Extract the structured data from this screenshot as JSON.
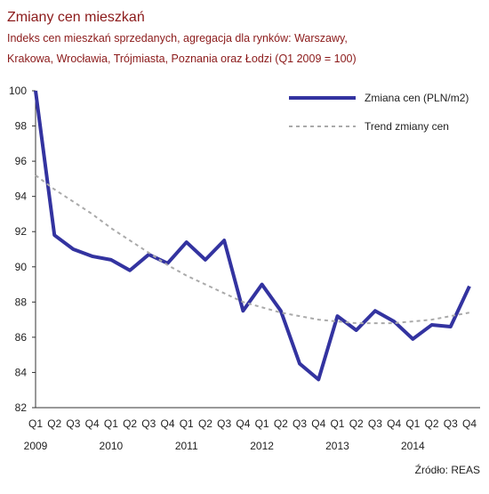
{
  "chart_data": {
    "type": "line",
    "title": "Zmiany cen mieszkań",
    "subtitle": [
      "Indeks cen mieszkań sprzedanych, agregacja dla rynków: Warszawy,",
      "Krakowa, Wrocławia, Trójmiasta, Poznania oraz Łodzi (Q1 2009 = 100)"
    ],
    "categories": [
      "Q1",
      "Q2",
      "Q3",
      "Q4",
      "Q1",
      "Q2",
      "Q3",
      "Q4",
      "Q1",
      "Q2",
      "Q3",
      "Q4",
      "Q1",
      "Q2",
      "Q3",
      "Q4",
      "Q1",
      "Q2",
      "Q3",
      "Q4",
      "Q1",
      "Q2",
      "Q3",
      "Q4"
    ],
    "years": [
      "2009",
      "2010",
      "2011",
      "2012",
      "2013",
      "2014"
    ],
    "series": [
      {
        "name": "Zmiana cen (PLN/m2)",
        "color": "#3333a0",
        "style": "solid",
        "values": [
          100,
          91.8,
          91.0,
          90.6,
          90.4,
          89.8,
          90.7,
          90.2,
          91.4,
          90.4,
          91.5,
          87.5,
          89.0,
          87.5,
          84.5,
          83.6,
          87.2,
          86.4,
          87.5,
          86.9,
          85.9,
          86.7,
          86.6,
          88.9
        ]
      },
      {
        "name": "Trend zmiany cen",
        "color": "#aaaaaa",
        "style": "dashed",
        "values": [
          95.2,
          94.4,
          93.7,
          93.0,
          92.2,
          91.5,
          90.8,
          90.1,
          89.5,
          89.0,
          88.5,
          88.0,
          87.7,
          87.4,
          87.2,
          87.0,
          86.9,
          86.8,
          86.8,
          86.8,
          86.9,
          87.0,
          87.2,
          87.4
        ]
      }
    ],
    "ylim": [
      82,
      100
    ],
    "yticks": [
      82,
      84,
      86,
      88,
      90,
      92,
      94,
      96,
      98,
      100
    ],
    "legend": "top-right",
    "source": "Źródło: REAS"
  }
}
